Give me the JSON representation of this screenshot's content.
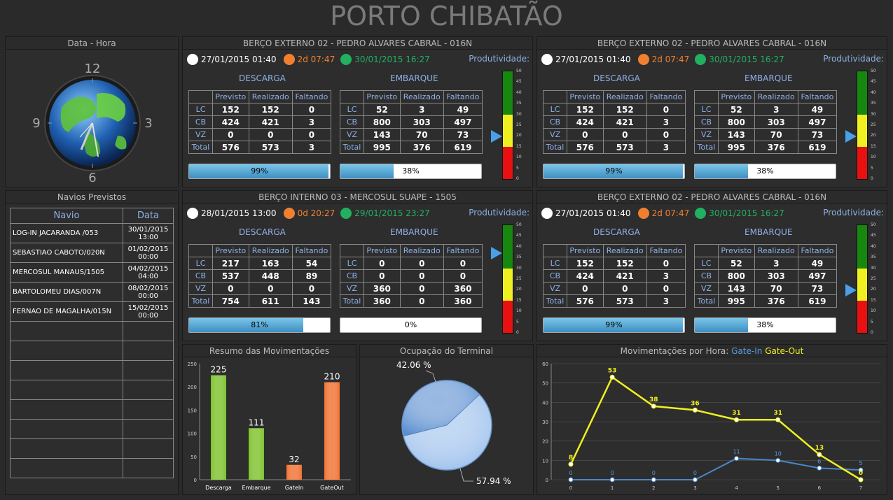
{
  "title": "PORTO CHIBATÃO",
  "clock": {
    "header": "Data - Hora",
    "numerals": [
      "12",
      "3",
      "6",
      "9"
    ]
  },
  "berths": [
    {
      "header": "BERÇO EXTERNO 02 - PEDRO ALVARES CABRAL - 016N",
      "start": "27/01/2015 01:40",
      "elapsed": "2d 07:47",
      "eta": "30/01/2015 16:27",
      "prod_label": "Produtividade:",
      "descarga_label": "DESCARGA",
      "embarque_label": "EMBARQUE",
      "cols": [
        "Previsto",
        "Realizado",
        "Faltando"
      ],
      "descarga": [
        [
          "LC",
          "152",
          "152",
          "0"
        ],
        [
          "CB",
          "424",
          "421",
          "3"
        ],
        [
          "VZ",
          "0",
          "0",
          "0"
        ],
        [
          "Total",
          "576",
          "573",
          "3"
        ]
      ],
      "embarque": [
        [
          "LC",
          "52",
          "3",
          "49"
        ],
        [
          "CB",
          "800",
          "303",
          "497"
        ],
        [
          "VZ",
          "143",
          "70",
          "73"
        ],
        [
          "Total",
          "995",
          "376",
          "619"
        ]
      ],
      "descarga_pct": "99%",
      "descarga_frac": 0.99,
      "embarque_pct": "38%",
      "embarque_frac": 0.38,
      "gauge_value": 20
    },
    {
      "header": "BERÇO EXTERNO 02 - PEDRO ALVARES CABRAL - 016N",
      "start": "27/01/2015 01:40",
      "elapsed": "2d 07:47",
      "eta": "30/01/2015 16:27",
      "prod_label": "Produtividade:",
      "descarga_label": "DESCARGA",
      "embarque_label": "EMBARQUE",
      "cols": [
        "Previsto",
        "Realizado",
        "Faltando"
      ],
      "descarga": [
        [
          "LC",
          "152",
          "152",
          "0"
        ],
        [
          "CB",
          "424",
          "421",
          "3"
        ],
        [
          "VZ",
          "0",
          "0",
          "0"
        ],
        [
          "Total",
          "576",
          "573",
          "3"
        ]
      ],
      "embarque": [
        [
          "LC",
          "52",
          "3",
          "49"
        ],
        [
          "CB",
          "800",
          "303",
          "497"
        ],
        [
          "VZ",
          "143",
          "70",
          "73"
        ],
        [
          "Total",
          "995",
          "376",
          "619"
        ]
      ],
      "descarga_pct": "99%",
      "descarga_frac": 0.99,
      "embarque_pct": "38%",
      "embarque_frac": 0.38,
      "gauge_value": 20
    },
    {
      "header": "BERÇO INTERNO 03 - MERCOSUL SUAPE - 1505",
      "start": "28/01/2015 13:00",
      "elapsed": "0d 20:27",
      "eta": "29/01/2015 23:27",
      "prod_label": "Produtividade:",
      "descarga_label": "DESCARGA",
      "embarque_label": "EMBARQUE",
      "cols": [
        "Previsto",
        "Realizado",
        "Faltando"
      ],
      "descarga": [
        [
          "LC",
          "217",
          "163",
          "54"
        ],
        [
          "CB",
          "537",
          "448",
          "89"
        ],
        [
          "VZ",
          "0",
          "0",
          "0"
        ],
        [
          "Total",
          "754",
          "611",
          "143"
        ]
      ],
      "embarque": [
        [
          "LC",
          "0",
          "0",
          "0"
        ],
        [
          "CB",
          "0",
          "0",
          "0"
        ],
        [
          "VZ",
          "360",
          "0",
          "360"
        ],
        [
          "Total",
          "360",
          "0",
          "360"
        ]
      ],
      "descarga_pct": "81%",
      "descarga_frac": 0.81,
      "embarque_pct": "0%",
      "embarque_frac": 0,
      "gauge_value": 37
    },
    {
      "header": "BERÇO EXTERNO 02 - PEDRO ALVARES CABRAL - 016N",
      "start": "27/01/2015 01:40",
      "elapsed": "2d 07:47",
      "eta": "30/01/2015 16:27",
      "prod_label": "Produtividade:",
      "descarga_label": "DESCARGA",
      "embarque_label": "EMBARQUE",
      "cols": [
        "Previsto",
        "Realizado",
        "Faltando"
      ],
      "descarga": [
        [
          "LC",
          "152",
          "152",
          "0"
        ],
        [
          "CB",
          "424",
          "421",
          "3"
        ],
        [
          "VZ",
          "0",
          "0",
          "0"
        ],
        [
          "Total",
          "576",
          "573",
          "3"
        ]
      ],
      "embarque": [
        [
          "LC",
          "52",
          "3",
          "49"
        ],
        [
          "CB",
          "800",
          "303",
          "497"
        ],
        [
          "VZ",
          "143",
          "70",
          "73"
        ],
        [
          "Total",
          "995",
          "376",
          "619"
        ]
      ],
      "descarga_pct": "99%",
      "descarga_frac": 0.99,
      "embarque_pct": "38%",
      "embarque_frac": 0.38,
      "gauge_value": 20
    }
  ],
  "gauge_ticks": [
    "50",
    "45",
    "40",
    "35",
    "30",
    "25",
    "20",
    "15",
    "10",
    "5",
    "0"
  ],
  "navios": {
    "header": "Navios Previstos",
    "col_navio": "Navio",
    "col_data": "Data",
    "rows": [
      [
        "LOG-IN JACARANDA /053",
        "30/01/2015",
        "13:00"
      ],
      [
        "SEBASTIAO CABOTO/020N",
        "01/02/2015",
        "00:00"
      ],
      [
        "MERCOSUL MANAUS/1505",
        "04/02/2015",
        "04:00"
      ],
      [
        "BARTOLOMEU DIAS/007N",
        "08/02/2015",
        "00:00"
      ],
      [
        "FERNAO DE MAGALHA/015N",
        "15/02/2015",
        "00:00"
      ]
    ],
    "empty_rows": 8
  },
  "resumo": {
    "header": "Resumo das Movimentações"
  },
  "ocupacao": {
    "header": "Ocupação do Terminal"
  },
  "movhora": {
    "header": "Movimentações por Hora:",
    "gatein_label": "Gate-In",
    "gateout_label": "Gate-Out"
  },
  "chart_data": [
    {
      "type": "bar",
      "title": "Resumo das Movimentações",
      "categories": [
        "Descarga",
        "Embarque",
        "GateIn",
        "GateOut"
      ],
      "values": [
        225,
        111,
        32,
        210
      ],
      "colors": [
        "#7cc22a",
        "#7cc22a",
        "#f07030",
        "#f07030"
      ],
      "ylim": [
        0,
        250
      ],
      "yticks": [
        0,
        50,
        100,
        150,
        200,
        250
      ]
    },
    {
      "type": "pie",
      "title": "Ocupação do Terminal",
      "slices": [
        {
          "label": "42.06 %",
          "value": 42.06,
          "color": "#5a8ed0"
        },
        {
          "label": "57.94 %",
          "value": 57.94,
          "color": "#9cc0ec"
        }
      ]
    },
    {
      "type": "line",
      "title": "Movimentações por Hora:",
      "x": [
        0,
        1,
        2,
        3,
        4,
        5,
        6,
        7
      ],
      "ylim": [
        0,
        60
      ],
      "yticks": [
        0,
        10,
        20,
        30,
        40,
        50,
        60
      ],
      "series": [
        {
          "name": "Gate-In",
          "color": "#4a86c8",
          "values": [
            0,
            0,
            0,
            0,
            11,
            10,
            6,
            5
          ]
        },
        {
          "name": "Gate-Out",
          "color": "#f0f020",
          "values": [
            8,
            53,
            38,
            36,
            31,
            31,
            13,
            0
          ]
        }
      ]
    }
  ]
}
